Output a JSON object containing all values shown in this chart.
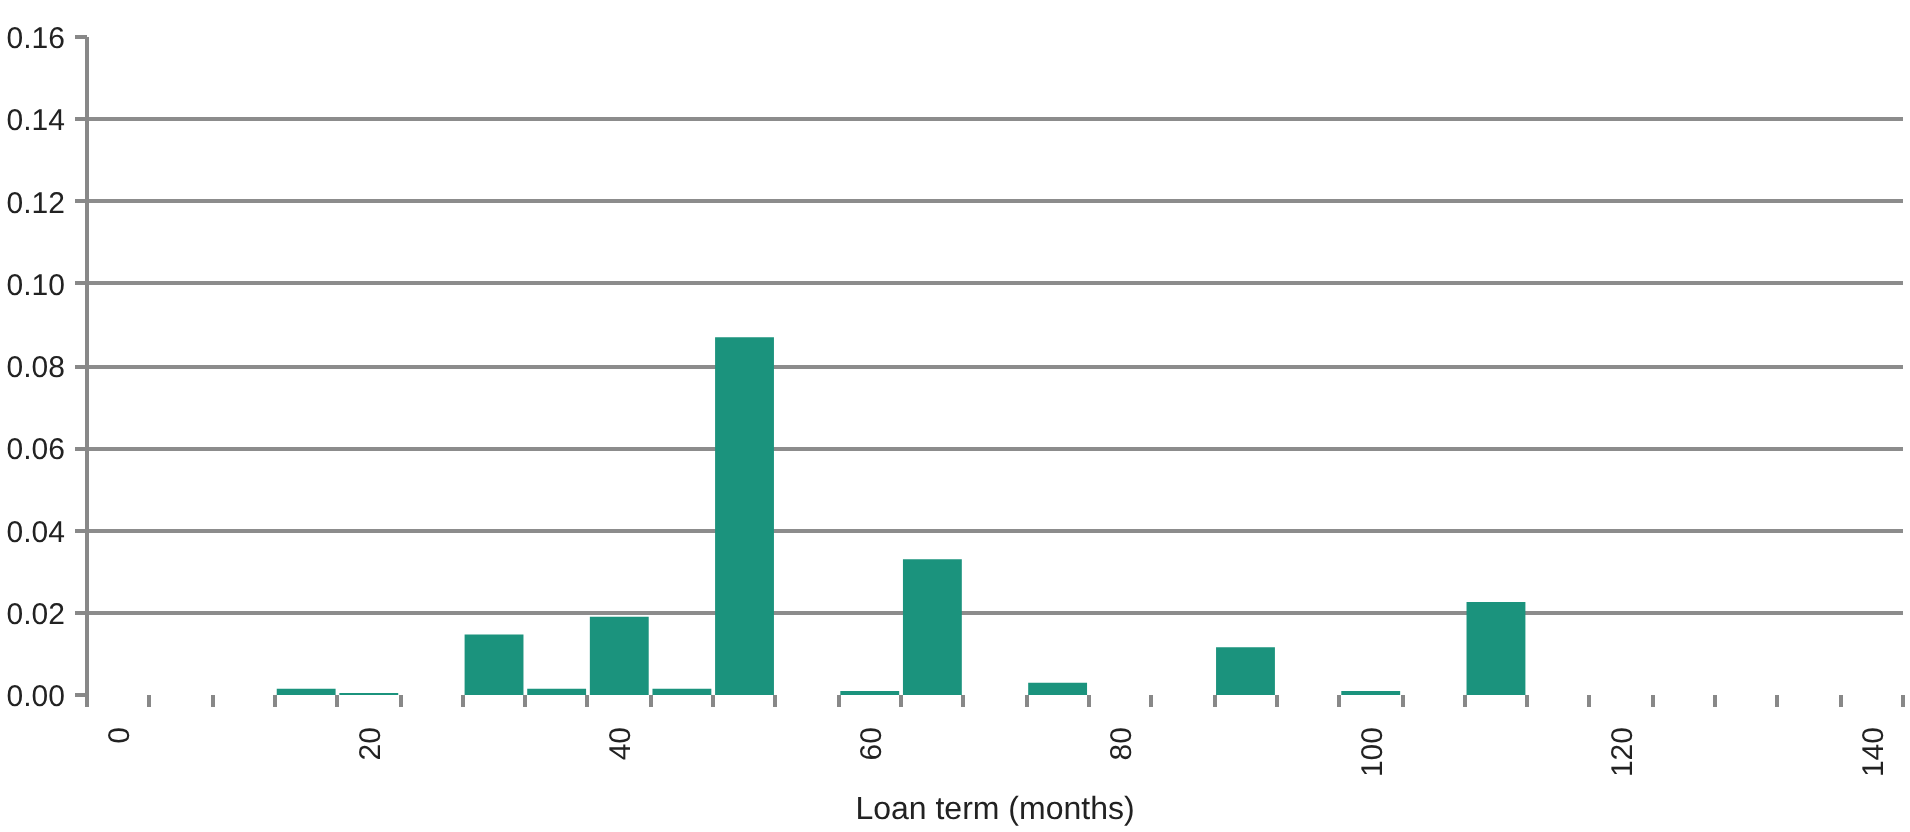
{
  "chart_data": {
    "type": "bar",
    "xlabel": "Loan term (months)",
    "x": [
      0,
      5,
      10,
      15,
      20,
      25,
      30,
      35,
      40,
      45,
      50,
      55,
      60,
      65,
      70,
      75,
      80,
      85,
      90,
      95,
      100,
      105,
      110,
      115,
      120,
      125,
      130,
      135,
      140
    ],
    "values": [
      0,
      0,
      0,
      0.0015,
      0.0005,
      0,
      0.0147,
      0.0015,
      0.019,
      0.0015,
      0.087,
      0,
      0.001,
      0.033,
      0,
      0.003,
      0,
      0,
      0.0116,
      0,
      0.001,
      0,
      0.0226,
      0,
      0,
      0,
      0,
      0,
      0
    ],
    "color": "#1b937d",
    "xlim": [
      -2.5,
      142.5
    ],
    "xticks": [
      0,
      20,
      40,
      60,
      80,
      100,
      120,
      140
    ],
    "ylim": [
      0,
      0.16
    ],
    "yticks": [
      {
        "value": 0,
        "label": "0.00"
      },
      {
        "value": 0.02,
        "label": "0.02"
      },
      {
        "value": 0.04,
        "label": "0.04"
      },
      {
        "value": 0.06,
        "label": "0.06"
      },
      {
        "value": 0.08,
        "label": "0.08"
      },
      {
        "value": 0.1,
        "label": "0.10"
      },
      {
        "value": 0.12,
        "label": "0.12"
      },
      {
        "value": 0.14,
        "label": "0.14"
      },
      {
        "value": 0.16,
        "label": "0.16"
      }
    ],
    "grid": "y"
  }
}
